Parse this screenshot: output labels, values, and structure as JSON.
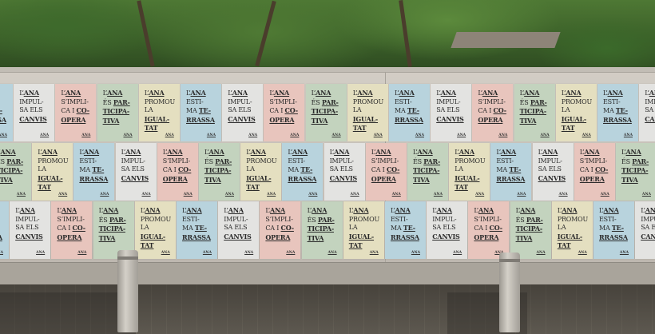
{
  "scene": "poster wall",
  "colors": {
    "gray": "#e3e3e1",
    "pink": "#e8c5bd",
    "green": "#c3d3be",
    "yellow": "#e4dfc0",
    "blue": "#b8d3dd"
  },
  "posters": [
    {
      "id": "impulsa",
      "color": "gray",
      "logo": "ANA",
      "lines": [
        [
          {
            "t": "L’"
          },
          {
            "t": "ANA",
            "u": true
          }
        ],
        [
          {
            "t": "IMPUL-"
          }
        ],
        [
          {
            "t": "SA ELS"
          }
        ],
        [
          {
            "t": "CANVIS",
            "u": true
          }
        ]
      ]
    },
    {
      "id": "implica",
      "color": "pink",
      "logo": "ANA",
      "lines": [
        [
          {
            "t": "L’"
          },
          {
            "t": "ANA",
            "u": true
          }
        ],
        [
          {
            "t": "S’IMPLI-"
          }
        ],
        [
          {
            "t": "CA I "
          },
          {
            "t": "CO-",
            "u": true
          }
        ],
        [
          {
            "t": "OPERA",
            "u": true
          }
        ]
      ]
    },
    {
      "id": "participativa",
      "color": "green",
      "logo": "ANA",
      "lines": [
        [
          {
            "t": "L’"
          },
          {
            "t": "ANA",
            "u": true
          }
        ],
        [
          {
            "t": "ÉS "
          },
          {
            "t": "PAR-",
            "u": true
          }
        ],
        [
          {
            "t": "TICIPA-",
            "u": true
          }
        ],
        [
          {
            "t": "TIVA",
            "u": true
          }
        ]
      ]
    },
    {
      "id": "igualtat",
      "color": "yellow",
      "logo": "ANA",
      "lines": [
        [
          {
            "t": "L’"
          },
          {
            "t": "ANA",
            "u": true
          }
        ],
        [
          {
            "t": "PROMOU"
          }
        ],
        [
          {
            "t": "LA"
          }
        ],
        [
          {
            "t": "IGUAL-",
            "u": true
          }
        ],
        [
          {
            "t": "TAT",
            "u": true
          }
        ]
      ]
    },
    {
      "id": "terrassa",
      "color": "blue",
      "logo": "ANA",
      "lines": [
        [
          {
            "t": "L’"
          },
          {
            "t": "ANA",
            "u": true
          }
        ],
        [
          {
            "t": "ESTI-"
          }
        ],
        [
          {
            "t": "MA "
          },
          {
            "t": "TE-",
            "u": true
          }
        ],
        [
          {
            "t": "RRASSA",
            "u": true
          }
        ]
      ]
    }
  ]
}
